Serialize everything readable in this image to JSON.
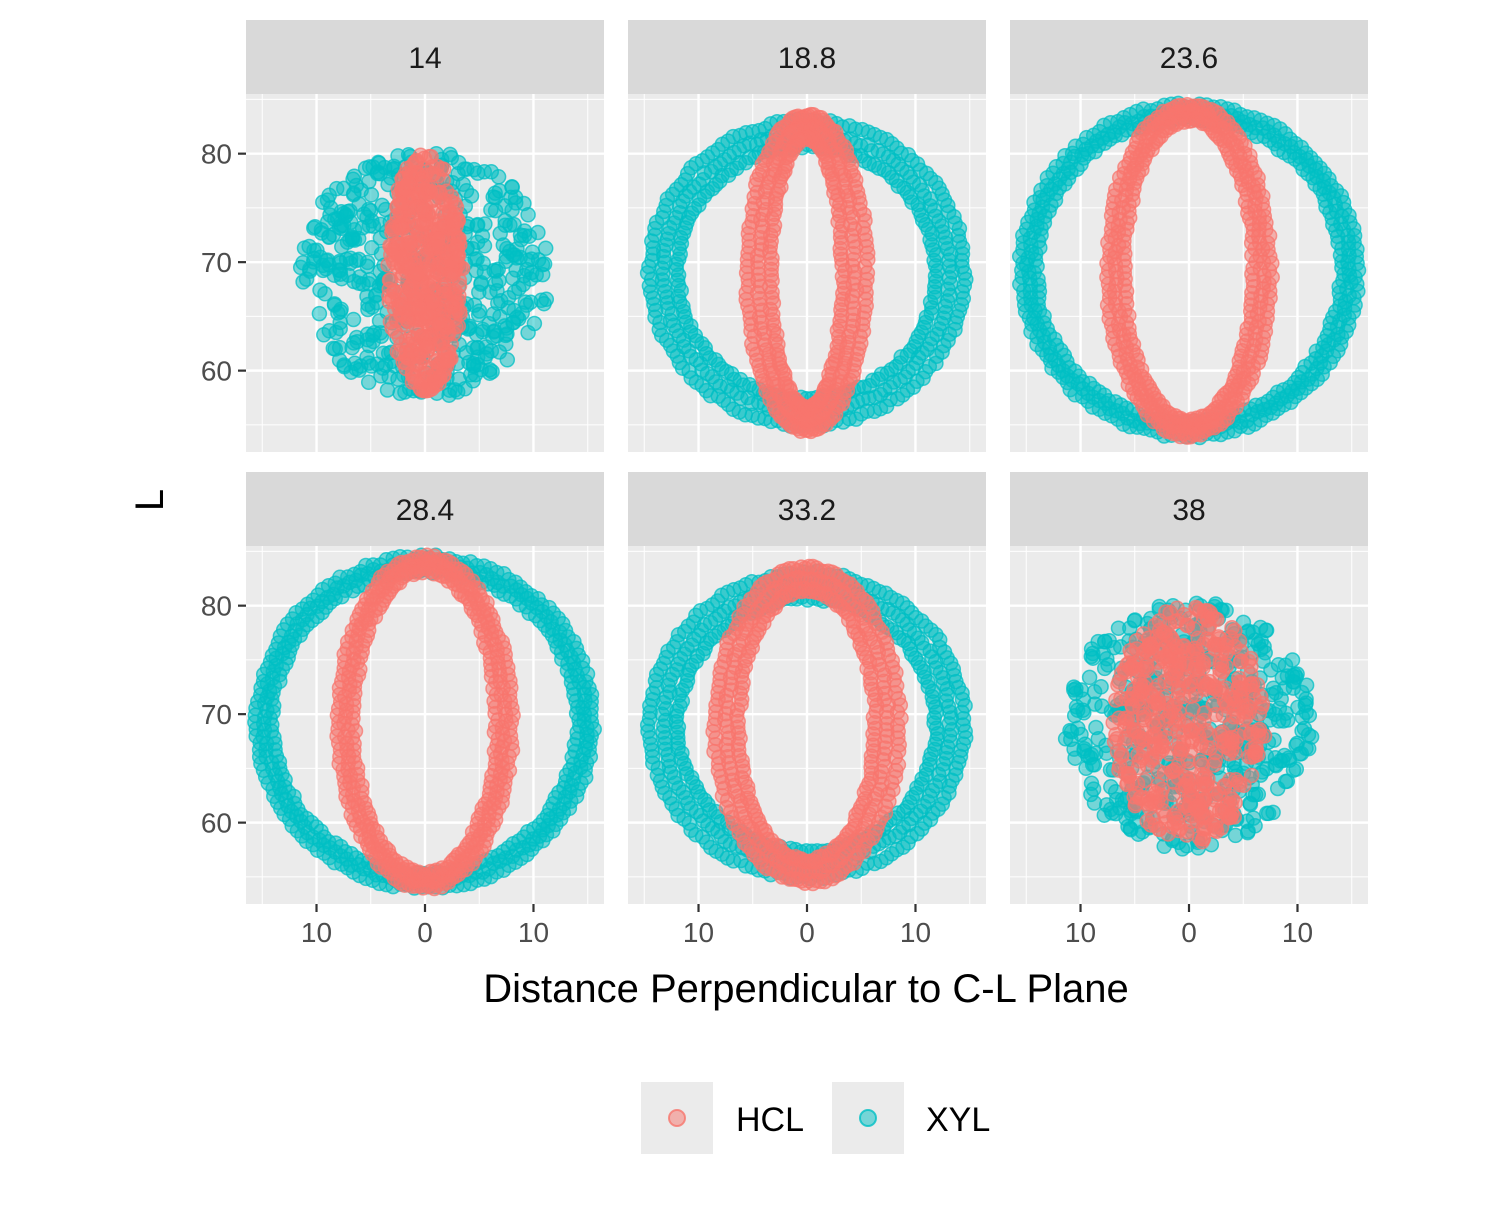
{
  "chart_data": {
    "type": "scatter",
    "facet_layout": "2x3 grid, facet strips on top, shared axes",
    "xlabel": "Distance Perpendicular to C-L Plane",
    "ylabel": "L",
    "xlim": [
      -16.5,
      16.5
    ],
    "ylim": [
      52.5,
      85.5
    ],
    "x_ticks": [
      -10,
      0,
      10
    ],
    "x_tick_labels": [
      "10",
      "0",
      "10"
    ],
    "y_ticks": [
      60,
      70,
      80
    ],
    "y_tick_labels": [
      "60",
      "70",
      "80"
    ],
    "grid": true,
    "legend": {
      "position": "bottom",
      "entries": [
        {
          "label": "HCL",
          "color": "#F8766D"
        },
        {
          "label": "XYL",
          "color": "#00BFC4"
        }
      ]
    },
    "point_alpha": 0.5,
    "facets": [
      {
        "label": "14",
        "series": [
          {
            "name": "XYL",
            "shape": "filled",
            "center": [
              0,
              69
            ],
            "x_half_width": 11.5,
            "y_range": [
              57.5,
              80.5
            ]
          },
          {
            "name": "HCL",
            "shape": "filled",
            "center": [
              0,
              69
            ],
            "x_half_width": 3.5,
            "y_range": [
              58,
              80
            ]
          }
        ]
      },
      {
        "label": "18.8",
        "series": [
          {
            "name": "XYL",
            "shape": "ring",
            "center": [
              0,
              69
            ],
            "x_half_width": 14.5,
            "y_range": [
              55,
              83
            ],
            "thickness": 2.6
          },
          {
            "name": "HCL",
            "shape": "ring",
            "center": [
              0,
              69
            ],
            "x_half_width": 5.5,
            "y_range": [
              54.5,
              83.5
            ],
            "thickness": 2.2
          }
        ]
      },
      {
        "label": "23.6",
        "series": [
          {
            "name": "XYL",
            "shape": "ring",
            "center": [
              0,
              69
            ],
            "x_half_width": 15.5,
            "y_range": [
              54,
              84.5
            ],
            "thickness": 1.4
          },
          {
            "name": "HCL",
            "shape": "ring",
            "center": [
              0,
              69
            ],
            "x_half_width": 7.5,
            "y_range": [
              54,
              84.5
            ],
            "thickness": 1.5
          }
        ]
      },
      {
        "label": "28.4",
        "series": [
          {
            "name": "XYL",
            "shape": "ring",
            "center": [
              0,
              69
            ],
            "x_half_width": 15.5,
            "y_range": [
              54,
              84.5
            ],
            "thickness": 1.4
          },
          {
            "name": "HCL",
            "shape": "ring",
            "center": [
              0,
              69
            ],
            "x_half_width": 8,
            "y_range": [
              54,
              84.5
            ],
            "thickness": 1.4
          }
        ]
      },
      {
        "label": "33.2",
        "series": [
          {
            "name": "XYL",
            "shape": "ring",
            "center": [
              0,
              69
            ],
            "x_half_width": 14.5,
            "y_range": [
              55,
              83
            ],
            "thickness": 2.6
          },
          {
            "name": "HCL",
            "shape": "ring",
            "center": [
              0,
              69
            ],
            "x_half_width": 8.5,
            "y_range": [
              54.5,
              83.5
            ],
            "thickness": 2.2
          }
        ]
      },
      {
        "label": "38",
        "series": [
          {
            "name": "XYL",
            "shape": "filled",
            "center": [
              0,
              69
            ],
            "x_half_width": 11.5,
            "y_range": [
              57.5,
              80.5
            ]
          },
          {
            "name": "HCL",
            "shape": "filled",
            "center": [
              0,
              69
            ],
            "x_half_width": 7,
            "y_range": [
              58,
              80
            ]
          }
        ]
      }
    ]
  }
}
